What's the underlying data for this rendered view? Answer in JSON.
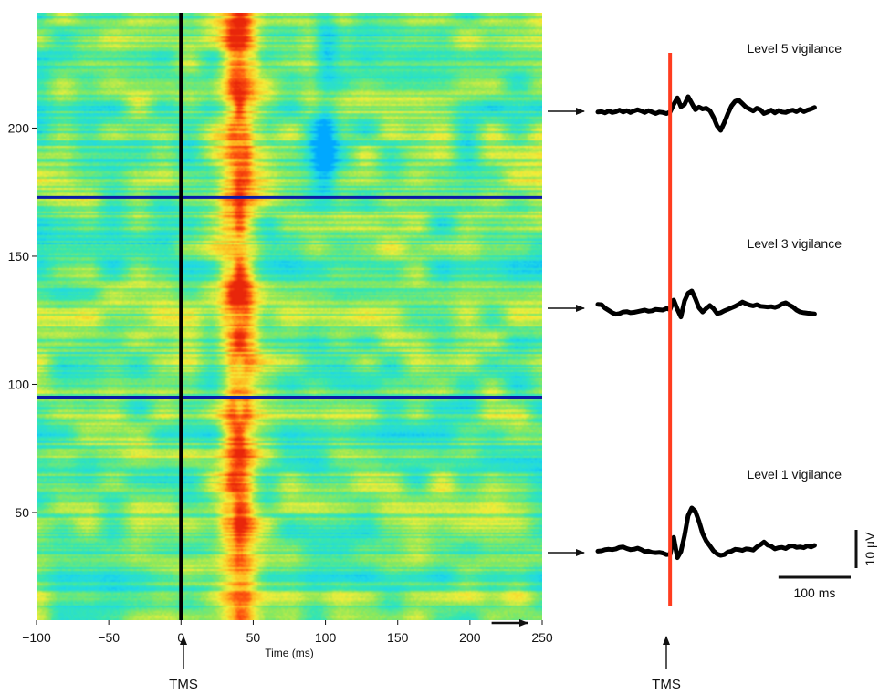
{
  "chart_data": [
    {
      "type": "heatmap",
      "title": "",
      "xlabel": "Time (ms)",
      "ylabel": "",
      "xlim": [
        -100,
        250
      ],
      "ylim": [
        8,
        245
      ],
      "x_ticks": [
        -100,
        -50,
        0,
        50,
        100,
        150,
        200,
        250
      ],
      "y_ticks": [
        50,
        100,
        150,
        200
      ],
      "grid": false,
      "colormap": [
        "#00a8ff",
        "#1fd8e8",
        "#36e6b0",
        "#8ee85a",
        "#f2ee3a",
        "#ffb81f",
        "#ff5a10",
        "#e8260a"
      ],
      "onset_line": {
        "x": 0,
        "color": "#000000"
      },
      "level_boundaries": [
        {
          "y": 173,
          "color": "#0a1aa8"
        },
        {
          "y": 95,
          "color": "#0a1aa8"
        }
      ],
      "hot_bands": [
        {
          "x_start": 25,
          "x_end": 55,
          "y_start": 8,
          "y_end": 245,
          "intensity": 0.9
        }
      ],
      "cold_spots": [
        {
          "x": 100,
          "y": 192,
          "intensity": 0.9
        },
        {
          "x": 100,
          "y": 232,
          "intensity": 0.6
        }
      ],
      "time_arrow": {
        "x_start": 215,
        "x_end": 250
      }
    },
    {
      "type": "line",
      "title": "",
      "xlim": [
        -100,
        250
      ],
      "onset_line": {
        "x": 0,
        "color": "#ff3c1f"
      },
      "series": [
        {
          "name": "Level 5 vigilance",
          "x": [
            -100,
            -95,
            -90,
            -85,
            -80,
            -75,
            -70,
            -65,
            -60,
            -55,
            -50,
            -45,
            -40,
            -35,
            -30,
            -25,
            -20,
            -15,
            -10,
            -5,
            0,
            5,
            10,
            15,
            20,
            25,
            30,
            35,
            40,
            45,
            50,
            55,
            60,
            65,
            70,
            75,
            80,
            85,
            90,
            95,
            100,
            105,
            110,
            115,
            120,
            125,
            130,
            135,
            140,
            145,
            150,
            155,
            160,
            165,
            170,
            175,
            180,
            185,
            190,
            195,
            200
          ],
          "y": [
            -0.2,
            -0.1,
            -0.4,
            0.1,
            -0.3,
            -0.1,
            0.3,
            -0.2,
            0.2,
            -0.3,
            0.1,
            0.4,
            0.1,
            -0.3,
            0.2,
            -0.2,
            -0.6,
            -0.2,
            -0.3,
            -0.6,
            -0.2,
            1.8,
            3.5,
            1.2,
            1.8,
            3.8,
            2.1,
            0.4,
            1.1,
            0.6,
            0.8,
            0.2,
            -1.5,
            -3.8,
            -5.0,
            -3.0,
            -0.6,
            1.4,
            2.6,
            2.9,
            2.0,
            1.1,
            0.6,
            0.1,
            0.8,
            0.4,
            -0.6,
            -0.2,
            0.3,
            -0.4,
            0.2,
            -0.2,
            -0.3,
            0.1,
            0.3,
            -0.1,
            0.5,
            -0.1,
            0.3,
            0.6,
            1.0
          ]
        },
        {
          "name": "Level 3 vigilance",
          "x": [
            -100,
            -95,
            -90,
            -85,
            -80,
            -75,
            -70,
            -65,
            -60,
            -55,
            -50,
            -45,
            -40,
            -35,
            -30,
            -25,
            -20,
            -15,
            -10,
            -5,
            0,
            5,
            10,
            15,
            20,
            25,
            30,
            35,
            40,
            45,
            50,
            55,
            60,
            65,
            70,
            75,
            80,
            85,
            90,
            95,
            100,
            105,
            110,
            115,
            120,
            125,
            130,
            135,
            140,
            145,
            150,
            155,
            160,
            165,
            170,
            175,
            180,
            185,
            190,
            195,
            200
          ],
          "y": [
            1.5,
            1.4,
            0.5,
            -0.1,
            -0.7,
            -1.1,
            -0.9,
            -0.5,
            -0.4,
            -0.7,
            -0.6,
            -0.4,
            -0.2,
            0.0,
            -0.3,
            -0.2,
            0.2,
            0.1,
            0.0,
            0.4,
            0.2,
            2.6,
            0.2,
            -1.8,
            2.4,
            4.4,
            5.0,
            3.0,
            0.6,
            -0.5,
            0.4,
            1.2,
            0.4,
            -0.9,
            -0.7,
            -0.2,
            0.2,
            0.6,
            1.0,
            1.5,
            2.1,
            1.7,
            1.3,
            1.1,
            1.4,
            1.0,
            0.9,
            0.8,
            0.9,
            0.7,
            1.0,
            1.6,
            1.9,
            1.3,
            0.8,
            0.0,
            -0.5,
            -0.7,
            -0.8,
            -0.9,
            -1.0
          ]
        },
        {
          "name": "Level 1 vigilance",
          "x": [
            -100,
            -95,
            -90,
            -85,
            -80,
            -75,
            -70,
            -65,
            -60,
            -55,
            -50,
            -45,
            -40,
            -35,
            -30,
            -25,
            -20,
            -15,
            -10,
            -5,
            0,
            5,
            10,
            15,
            20,
            25,
            30,
            35,
            40,
            45,
            50,
            55,
            60,
            65,
            70,
            75,
            80,
            85,
            90,
            95,
            100,
            105,
            110,
            115,
            120,
            125,
            130,
            135,
            140,
            145,
            150,
            155,
            160,
            165,
            170,
            175,
            180,
            185,
            190,
            195,
            200
          ],
          "y": [
            -0.1,
            0.0,
            0.3,
            0.4,
            0.3,
            0.5,
            0.9,
            1.0,
            0.6,
            0.3,
            0.4,
            0.7,
            0.3,
            -0.2,
            -0.1,
            -0.4,
            -0.5,
            -0.4,
            -0.6,
            -1.0,
            -0.9,
            3.5,
            -1.8,
            -0.2,
            4.0,
            9.2,
            11.2,
            10.3,
            7.7,
            4.5,
            2.6,
            1.3,
            0.0,
            -0.8,
            -1.2,
            -1.0,
            -0.3,
            -0.1,
            0.4,
            0.3,
            0.1,
            0.5,
            0.4,
            0.2,
            1.0,
            1.6,
            2.3,
            1.5,
            1.2,
            0.5,
            0.8,
            0.9,
            0.6,
            1.2,
            1.3,
            0.9,
            1.0,
            0.8,
            1.3,
            1.0,
            1.4
          ]
        }
      ],
      "scale_bar": {
        "amplitude_uV": 10,
        "amplitude_label": "10 µV",
        "time_ms": 100,
        "time_label": "100  ms"
      }
    }
  ],
  "annotations": {
    "tms_left": "TMS",
    "tms_right": "TMS"
  }
}
